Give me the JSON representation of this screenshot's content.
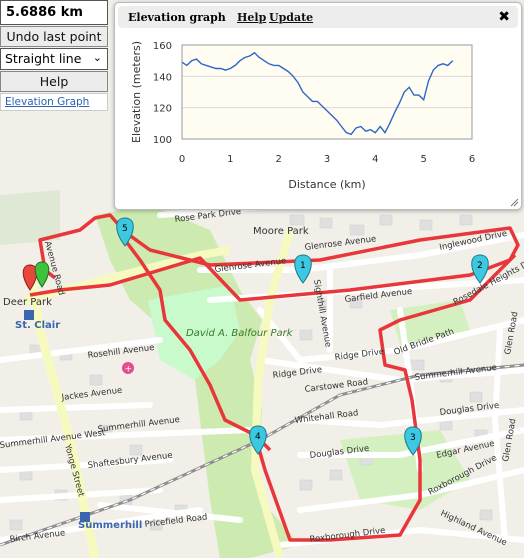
{
  "distance_readout": "5.6886 km",
  "controls": {
    "undo_label": "Undo last point",
    "mode_selected": "Straight line",
    "help_label": "Help",
    "elevation_link": "Elevation Graph"
  },
  "panel": {
    "title": "Elevation graph",
    "help": "Help",
    "update": "Update",
    "close": "✖"
  },
  "chart_data": {
    "type": "line",
    "xlabel": "Distance (km)",
    "ylabel": "Elevation (meters)",
    "xlim": [
      0,
      6
    ],
    "ylim": [
      100,
      160
    ],
    "xticks": [
      0,
      1,
      2,
      3,
      4,
      5,
      6
    ],
    "yticks": [
      100,
      120,
      140,
      160
    ],
    "grid": true,
    "x": [
      0,
      0.1,
      0.2,
      0.3,
      0.4,
      0.5,
      0.6,
      0.7,
      0.8,
      0.9,
      1.0,
      1.1,
      1.2,
      1.3,
      1.4,
      1.5,
      1.6,
      1.7,
      1.8,
      1.9,
      2.0,
      2.1,
      2.2,
      2.3,
      2.4,
      2.5,
      2.6,
      2.7,
      2.8,
      2.9,
      3.0,
      3.1,
      3.2,
      3.3,
      3.4,
      3.5,
      3.6,
      3.7,
      3.8,
      3.9,
      4.0,
      4.1,
      4.2,
      4.3,
      4.4,
      4.5,
      4.6,
      4.7,
      4.8,
      4.9,
      5.0,
      5.1,
      5.2,
      5.3,
      5.4,
      5.5,
      5.6
    ],
    "y": [
      149,
      147,
      150,
      151,
      148,
      147,
      146,
      145,
      145,
      144,
      145,
      147,
      150,
      152,
      153,
      155,
      152,
      150,
      148,
      147,
      147,
      145,
      143,
      140,
      136,
      130,
      127,
      124,
      124,
      121,
      118,
      115,
      112,
      108,
      104,
      103,
      107,
      108,
      105,
      106,
      104,
      108,
      104,
      110,
      117,
      123,
      130,
      133,
      128,
      128,
      125,
      137,
      144,
      147,
      148,
      147,
      150
    ],
    "line_color": "#2e66c8"
  },
  "map": {
    "labels": {
      "rose_park": "Rose Park Drive",
      "moore_park": "Moore Park",
      "glenrose_1": "Glenrose Avenue",
      "glenrose_2": "Glenrose Avenue",
      "inglewood": "Inglewood Drive",
      "rosedale_heights": "Rosedale Heights Drive",
      "garfield": "Garfield Avenue",
      "sighthill": "Sighthill Avenue",
      "ridge_1": "Ridge Drive",
      "ridge_2": "Ridge Drive",
      "old_bridle": "Old Bridle Path",
      "summerhill_ave_e": "Summerhill Avenue",
      "carstowe": "Carstowe Road",
      "douglas_drive_e": "Douglas Drive",
      "whitehall": "Whitehall Road",
      "douglas_drive_w": "Douglas Drive",
      "edgar": "Edgar Avenue",
      "roxborough_dr_e": "Roxborough Drive",
      "highland": "Highland Avenue",
      "roxborough_dr_s": "Roxborough Drive",
      "glen_road_1": "Glen Road",
      "glen_road_2": "Glen Road",
      "deer_park": "Deer Park",
      "st_clair": "St. Clair",
      "rosehill": "Rosehill Avenue",
      "jackes": "Jackes Avenue",
      "balfour": "David A. Balfour Park",
      "yonge": "Yonge Street",
      "summerhill_ave_w": "Summerhill Avenue",
      "shaftesbury": "Shaftesbury Avenue",
      "birch": "Birch Avenue",
      "summerhill_station": "Summerhill",
      "priceefield": "Pricefield Road",
      "avenue_road": "Avenue Road",
      "summerhill_ave_west": "Summerhill Avenue West"
    },
    "markers": [
      "5",
      "1",
      "2",
      "3",
      "4"
    ],
    "route_color": "#e8363a"
  }
}
